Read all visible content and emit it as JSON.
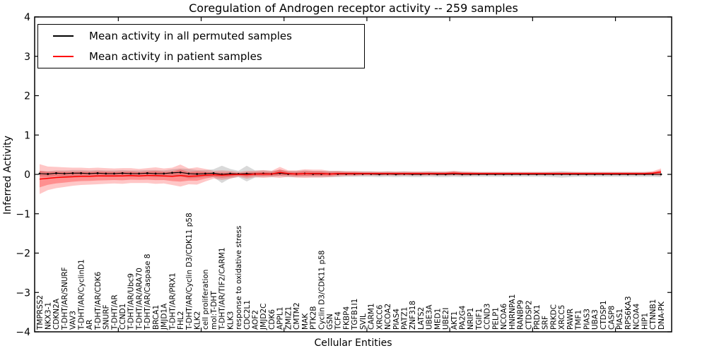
{
  "figure": {
    "title": "Coregulation of Androgen receptor activity -- 259 samples",
    "xlabel": "Cellular Entities",
    "ylabel": "Inferred Activity",
    "legend": [
      {
        "label": "Mean activity in all permuted samples",
        "color": "#000000"
      },
      {
        "label": "Mean activity in patient samples",
        "color": "#ff0000"
      }
    ]
  },
  "chart_data": {
    "type": "line",
    "title": "Coregulation of Androgen receptor activity -- 259 samples",
    "xlabel": "Cellular Entities",
    "ylabel": "Inferred Activity",
    "ylim": [
      -4,
      4
    ],
    "yticks": [
      -4,
      -3,
      -2,
      -1,
      0,
      1,
      2,
      3,
      4
    ],
    "ytick_labels": [
      "−4",
      "−3",
      "−2",
      "−1",
      "0",
      "1",
      "2",
      "3",
      "4"
    ],
    "grid": false,
    "legend_position": "upper left",
    "categories": [
      "TMPRSS2",
      "NKX3-1",
      "CDKN2A",
      "T-DHT/AR/SNURF",
      "VAV3",
      "T-DHT/AR/CyclinD1",
      "AR",
      "T-DHT/AR/CDK6",
      "SNURF",
      "T-DHT/AR",
      "CCND1",
      "T-DHT/AR/Ubc9",
      "T-DHT/AR/ARA70",
      "T-DHT/AR/Caspase 8",
      "BRCA1",
      "JMJD1A",
      "T-DHT/AR/PRX1",
      "FHL2",
      "T-DHT/AR/Cyclin D3/CDK11 p58",
      "KLK2",
      "cell proliferation",
      "mol:T-DHT",
      "T-DHT/AR/TIF2/CARM1",
      "KLK3",
      "response to oxidative stress",
      "CDC2L1",
      "AOF2",
      "JMJD2C",
      "CDK6",
      "APPL1",
      "ZMIZ1",
      "CMTM2",
      "MAK",
      "PTK2B",
      "Cyclin D3/CDK11 p58",
      "GSN",
      "TCF4",
      "FKBP4",
      "TGFB1I1",
      "SVIL",
      "CARM1",
      "XRCC6",
      "NCOA2",
      "PIAS4",
      "PATZ1",
      "ZNF318",
      "LATS2",
      "UBE3A",
      "MED1",
      "UBE2I",
      "AKT1",
      "PA2G4",
      "NRIP1",
      "TGIF1",
      "CCND3",
      "PELP1",
      "NCOA6",
      "HNRNPA1",
      "RANBP9",
      "CTDSP2",
      "PRDX1",
      "SRF",
      "PRKDC",
      "XRCC5",
      "PAWR",
      "TMF1",
      "PIAS3",
      "UBA3",
      "CTDSP1",
      "CASP8",
      "PIAS1",
      "RPS6KA3",
      "NCOA4",
      "HIP1",
      "CTNNB1",
      "DNA-PK"
    ],
    "series": [
      {
        "name": "Mean activity in all permuted samples",
        "color": "#000000",
        "marker": "dot",
        "values": [
          0.02,
          0.01,
          0.03,
          0.02,
          0.03,
          0.03,
          0.02,
          0.03,
          0.02,
          0.02,
          0.03,
          0.02,
          0.02,
          0.03,
          0.02,
          0.02,
          0.04,
          0.05,
          0.02,
          0.01,
          0.02,
          0.03,
          0.0,
          0.02,
          0.01,
          0.02,
          0.01,
          0.02,
          0.01,
          0.03,
          0.01,
          0.01,
          0.02,
          0.01,
          0.01,
          0.01,
          0.01,
          0.01,
          0.01,
          0.01,
          0.01,
          0.0,
          0.01,
          0.0,
          0.01,
          0.0,
          0.0,
          0.01,
          0.0,
          0.0,
          0.01,
          0.0,
          0.0,
          0.0,
          0.0,
          0.0,
          0.0,
          0.0,
          0.0,
          0.0,
          0.0,
          0.0,
          0.0,
          0.0,
          0.0,
          0.0,
          0.0,
          0.0,
          0.0,
          0.0,
          0.0,
          0.0,
          0.0,
          0.0,
          0.0,
          0.0
        ],
        "band": {
          "name": "permuted-samples-std-band",
          "color": "#787878",
          "alpha": 0.28,
          "halfwidth": [
            0.07,
            0.07,
            0.07,
            0.08,
            0.08,
            0.08,
            0.08,
            0.08,
            0.08,
            0.08,
            0.08,
            0.08,
            0.08,
            0.08,
            0.09,
            0.08,
            0.09,
            0.1,
            0.12,
            0.1,
            0.09,
            0.1,
            0.22,
            0.12,
            0.08,
            0.2,
            0.09,
            0.08,
            0.08,
            0.08,
            0.08,
            0.08,
            0.08,
            0.08,
            0.08,
            0.08,
            0.08,
            0.07,
            0.07,
            0.07,
            0.07,
            0.07,
            0.07,
            0.07,
            0.07,
            0.07,
            0.07,
            0.07,
            0.07,
            0.07,
            0.07,
            0.07,
            0.06,
            0.06,
            0.06,
            0.06,
            0.06,
            0.06,
            0.06,
            0.06,
            0.06,
            0.06,
            0.07,
            0.08,
            0.07,
            0.06,
            0.06,
            0.06,
            0.06,
            0.06,
            0.06,
            0.06,
            0.06,
            0.06,
            0.06,
            0.07
          ]
        }
      },
      {
        "name": "Mean activity in patient samples",
        "color": "#ff0000",
        "marker": "none",
        "values": [
          -0.12,
          -0.1,
          -0.08,
          -0.07,
          -0.06,
          -0.05,
          -0.05,
          -0.04,
          -0.04,
          -0.04,
          -0.04,
          -0.03,
          -0.04,
          -0.03,
          -0.03,
          -0.04,
          -0.05,
          -0.03,
          -0.05,
          -0.04,
          -0.02,
          -0.01,
          -0.02,
          -0.01,
          0.0,
          -0.01,
          0.01,
          0.01,
          0.01,
          0.05,
          0.02,
          0.01,
          0.02,
          0.02,
          0.02,
          0.01,
          0.02,
          0.02,
          0.02,
          0.02,
          0.02,
          0.02,
          0.02,
          0.02,
          0.02,
          0.02,
          0.02,
          0.02,
          0.02,
          0.02,
          0.03,
          0.02,
          0.02,
          0.02,
          0.02,
          0.02,
          0.02,
          0.02,
          0.02,
          0.02,
          0.02,
          0.02,
          0.02,
          0.02,
          0.02,
          0.02,
          0.02,
          0.02,
          0.02,
          0.02,
          0.02,
          0.02,
          0.02,
          0.02,
          0.03,
          0.06
        ],
        "band": {
          "name": "patient-samples-std-band",
          "color": "#ff0000",
          "alpha": 0.22,
          "inner_alpha": 0.28,
          "inner_scale": 0.55,
          "halfwidth": [
            0.38,
            0.3,
            0.27,
            0.25,
            0.23,
            0.22,
            0.21,
            0.21,
            0.2,
            0.19,
            0.2,
            0.19,
            0.18,
            0.19,
            0.21,
            0.19,
            0.22,
            0.28,
            0.2,
            0.22,
            0.16,
            0.1,
            0.12,
            0.1,
            0.06,
            0.1,
            0.08,
            0.1,
            0.08,
            0.14,
            0.08,
            0.09,
            0.11,
            0.1,
            0.1,
            0.08,
            0.07,
            0.06,
            0.06,
            0.05,
            0.05,
            0.05,
            0.05,
            0.05,
            0.05,
            0.05,
            0.05,
            0.05,
            0.05,
            0.05,
            0.06,
            0.05,
            0.05,
            0.04,
            0.04,
            0.04,
            0.04,
            0.04,
            0.04,
            0.04,
            0.04,
            0.04,
            0.04,
            0.04,
            0.04,
            0.04,
            0.04,
            0.04,
            0.04,
            0.04,
            0.04,
            0.04,
            0.04,
            0.04,
            0.05,
            0.09
          ]
        }
      }
    ]
  }
}
